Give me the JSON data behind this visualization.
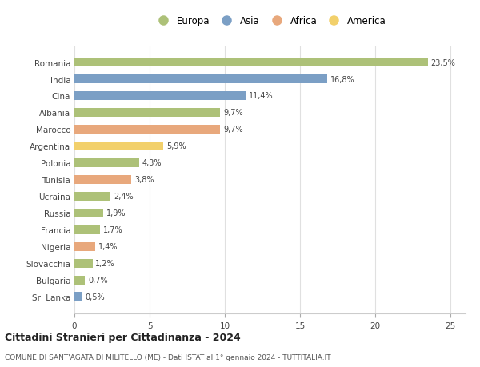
{
  "countries": [
    "Romania",
    "India",
    "Cina",
    "Albania",
    "Marocco",
    "Argentina",
    "Polonia",
    "Tunisia",
    "Ucraina",
    "Russia",
    "Francia",
    "Nigeria",
    "Slovacchia",
    "Bulgaria",
    "Sri Lanka"
  ],
  "values": [
    23.5,
    16.8,
    11.4,
    9.7,
    9.7,
    5.9,
    4.3,
    3.8,
    2.4,
    1.9,
    1.7,
    1.4,
    1.2,
    0.7,
    0.5
  ],
  "labels": [
    "23,5%",
    "16,8%",
    "11,4%",
    "9,7%",
    "9,7%",
    "5,9%",
    "4,3%",
    "3,8%",
    "2,4%",
    "1,9%",
    "1,7%",
    "1,4%",
    "1,2%",
    "0,7%",
    "0,5%"
  ],
  "continents": [
    "Europa",
    "Asia",
    "Asia",
    "Europa",
    "Africa",
    "America",
    "Europa",
    "Africa",
    "Europa",
    "Europa",
    "Europa",
    "Africa",
    "Europa",
    "Europa",
    "Asia"
  ],
  "colors": {
    "Europa": "#adc178",
    "Asia": "#7b9fc5",
    "Africa": "#e8a87c",
    "America": "#f2d06b"
  },
  "legend_order": [
    "Europa",
    "Asia",
    "Africa",
    "America"
  ],
  "title": "Cittadini Stranieri per Cittadinanza - 2024",
  "subtitle": "COMUNE DI SANT'AGATA DI MILITELLO (ME) - Dati ISTAT al 1° gennaio 2024 - TUTTITALIA.IT",
  "xlim": [
    0,
    26
  ],
  "xticks": [
    0,
    5,
    10,
    15,
    20,
    25
  ],
  "background_color": "#ffffff",
  "grid_color": "#e0e0e0"
}
